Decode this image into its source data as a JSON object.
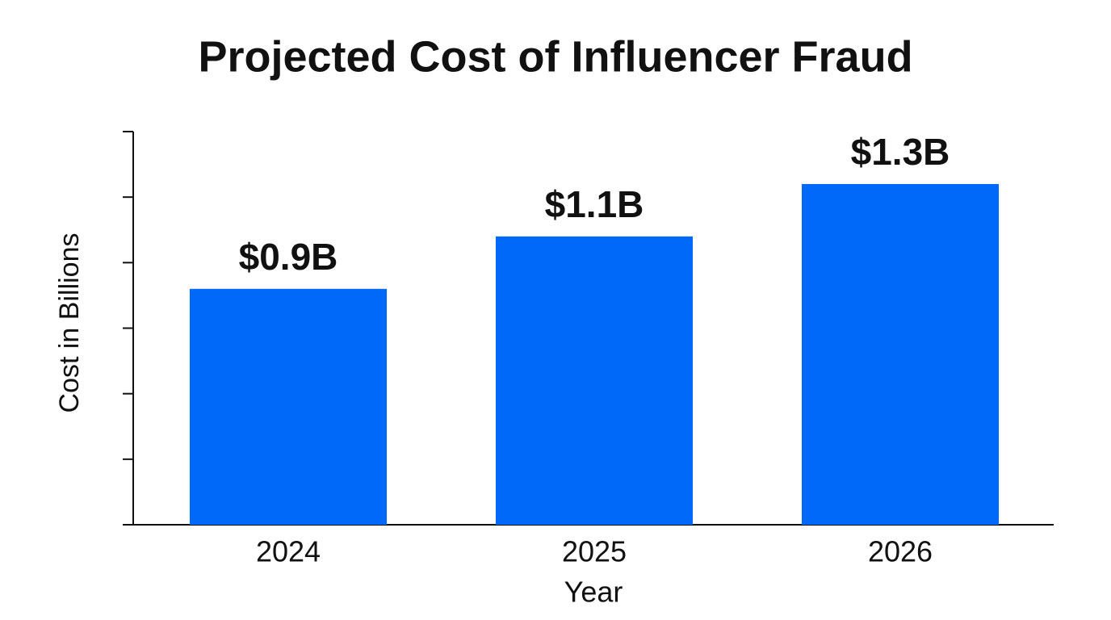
{
  "chart_data": {
    "type": "bar",
    "title": "Projected Cost of Influencer Fraud",
    "x_label": "Year",
    "y_label": "Cost in Billions",
    "categories": [
      "2024",
      "2025",
      "2026"
    ],
    "values": [
      0.9,
      1.1,
      1.3
    ],
    "value_labels": [
      "$0.9B",
      "$1.1B",
      "$1.3B"
    ],
    "color": "#0069fa",
    "ylim": [
      0,
      1.5
    ],
    "yticks": [
      0,
      0.25,
      0.5,
      0.75,
      1,
      1.25,
      1.5
    ],
    "grid": false
  }
}
